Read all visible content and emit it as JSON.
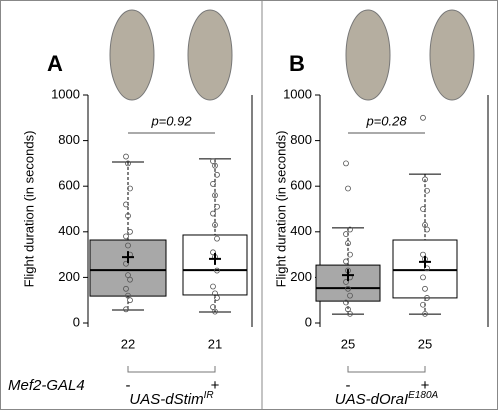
{
  "chart_data": [
    {
      "type": "box",
      "panel": "A",
      "annotation": "p=0.92",
      "ylabel": "Flight duration (in seconds)",
      "ylim": [
        0,
        1000
      ],
      "yticks": [
        0,
        200,
        400,
        600,
        800,
        1000
      ],
      "row_label": "Mef2-GAL4",
      "genotype": "UAS-dStim",
      "genotype_sup": "IR",
      "boxes": [
        {
          "group": "-",
          "n": 22,
          "color": "#a8a8a8",
          "whisker_low": 57,
          "q1": 118,
          "median": 232,
          "q3": 364,
          "whisker_high": 706,
          "mean": 289,
          "points": [
            730,
            700,
            590,
            520,
            470,
            400,
            380,
            340,
            300,
            260,
            210,
            190,
            150,
            120,
            100,
            60
          ]
        },
        {
          "group": "+",
          "n": 21,
          "color": "#ffffff",
          "whisker_low": 48,
          "q1": 123,
          "median": 232,
          "q3": 386,
          "whisker_high": 720,
          "mean": 281,
          "points": [
            710,
            690,
            650,
            610,
            560,
            510,
            480,
            430,
            370,
            310,
            290,
            230,
            160,
            130,
            110,
            70,
            50
          ]
        }
      ]
    },
    {
      "type": "box",
      "panel": "B",
      "annotation": "p=0.28",
      "ylabel": "Flight duration (in seconds)",
      "ylim": [
        0,
        1000
      ],
      "yticks": [
        0,
        200,
        400,
        600,
        800,
        1000
      ],
      "genotype": "UAS-dOraI",
      "genotype_sup": "E180A",
      "boxes": [
        {
          "group": "-",
          "n": 25,
          "color": "#a8a8a8",
          "whisker_low": 39,
          "q1": 96,
          "median": 153,
          "q3": 254,
          "whisker_high": 417,
          "mean": 210,
          "points": [
            700,
            590,
            410,
            390,
            350,
            300,
            270,
            230,
            200,
            180,
            150,
            120,
            90,
            60,
            40
          ]
        },
        {
          "group": "+",
          "n": 25,
          "color": "#ffffff",
          "whisker_low": 39,
          "q1": 110,
          "median": 232,
          "q3": 364,
          "whisker_high": 653,
          "mean": 268,
          "points": [
            900,
            630,
            580,
            500,
            430,
            410,
            300,
            280,
            240,
            200,
            150,
            110,
            80,
            40
          ]
        }
      ]
    }
  ]
}
